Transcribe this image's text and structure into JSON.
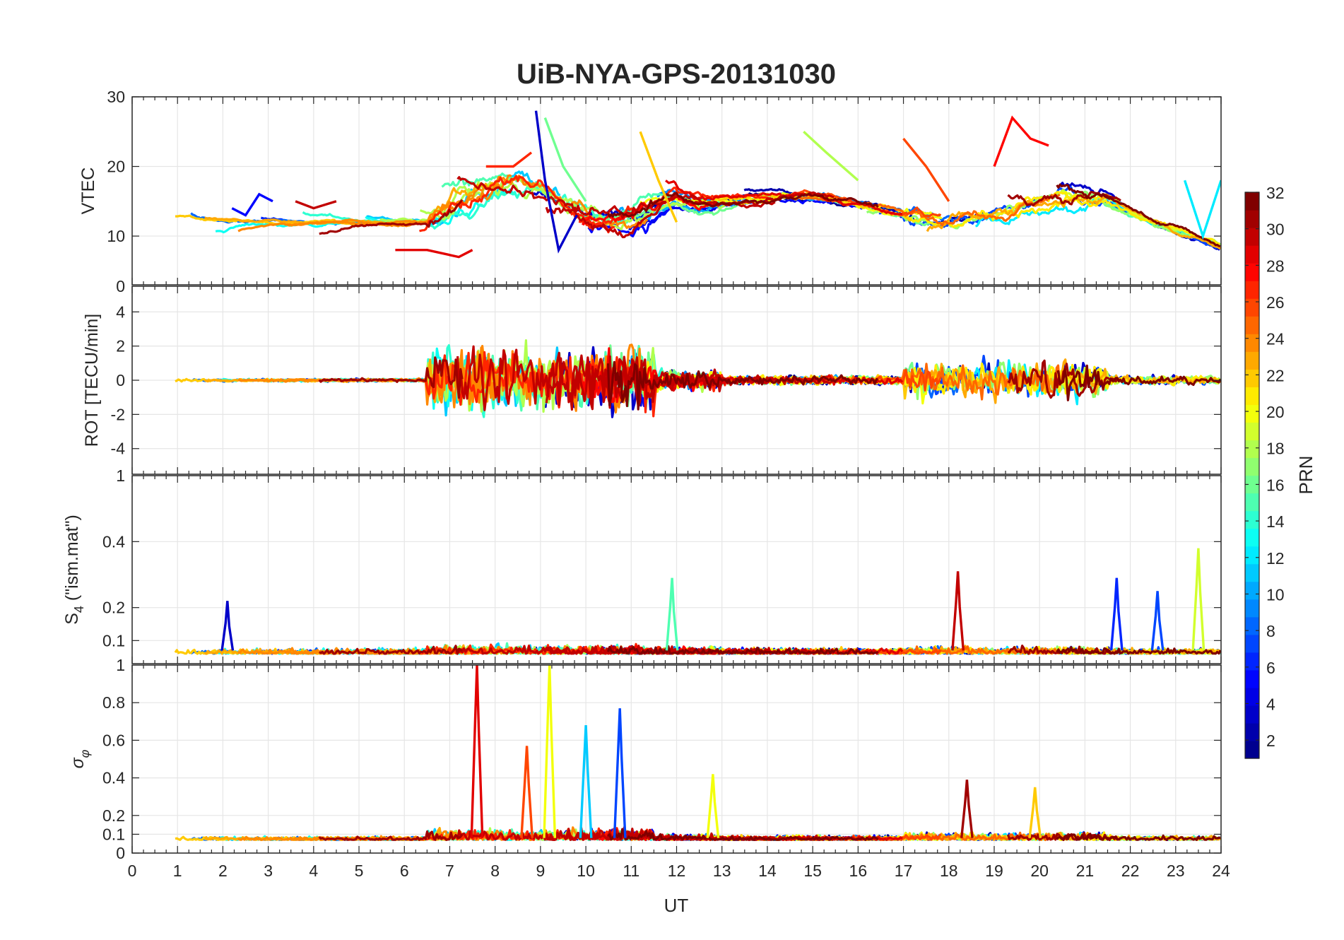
{
  "chart_data": {
    "title": "UiB-NYA-GPS-20131030",
    "type": "line",
    "x": {
      "label": "UT",
      "range": [
        0,
        24
      ],
      "ticks": [
        0,
        1,
        2,
        3,
        4,
        5,
        6,
        7,
        8,
        9,
        10,
        11,
        12,
        13,
        14,
        15,
        16,
        17,
        18,
        19,
        20,
        21,
        22,
        23,
        24
      ]
    },
    "panels": [
      {
        "id": "vtec",
        "ylabel": "VTEC",
        "ylim": [
          3,
          30
        ],
        "yticks": [
          10,
          20,
          30
        ],
        "grid": true
      },
      {
        "id": "rot",
        "ylabel": "ROT [TECU/min]",
        "ylim": [
          -5.5,
          5.5
        ],
        "yticks": [
          -4,
          -2,
          0,
          2,
          4
        ],
        "top_tick_label": "0",
        "grid": true
      },
      {
        "id": "s4",
        "ylabel": "S",
        "ylabel_sub": "4",
        "ylabel_suffix": " (\"ism.mat\")",
        "ylim": [
          0.03,
          0.6
        ],
        "yticks": [
          0.1,
          0.2,
          0.4
        ],
        "top_tick_label": "1",
        "grid": true
      },
      {
        "id": "sigma",
        "ylabel": "σ",
        "ylabel_sub": "φ",
        "ylim": [
          0,
          1
        ],
        "yticks": [
          0,
          0.1,
          0.2,
          0.4,
          0.6,
          0.8
        ],
        "top_tick_label": "1",
        "grid": true
      }
    ],
    "colorbar": {
      "label": "PRN",
      "range": [
        1,
        32
      ],
      "ticks": [
        2,
        4,
        6,
        8,
        10,
        12,
        14,
        16,
        18,
        20,
        22,
        24,
        26,
        28,
        30,
        32
      ],
      "colormap": "jet",
      "colors": [
        "#00008f",
        "#0000ff",
        "#0080ff",
        "#00ffff",
        "#80ff80",
        "#ffff00",
        "#ff8000",
        "#ff0000",
        "#800000"
      ]
    },
    "series_segments": [
      {
        "prn": 5,
        "vtec": [
          [
            2.2,
            14
          ],
          [
            2.5,
            13
          ],
          [
            2.8,
            16
          ],
          [
            3.1,
            15
          ]
        ]
      },
      {
        "prn": 30,
        "vtec": [
          [
            3.6,
            15
          ],
          [
            4.0,
            14
          ],
          [
            4.5,
            15
          ]
        ]
      },
      {
        "prn": 29,
        "vtec": [
          [
            5.8,
            8
          ],
          [
            6.5,
            8
          ],
          [
            7.2,
            7
          ],
          [
            7.5,
            8
          ]
        ]
      },
      {
        "prn": 27,
        "vtec": [
          [
            7.8,
            20
          ],
          [
            8.4,
            20
          ],
          [
            8.8,
            22
          ]
        ]
      },
      {
        "prn": 3,
        "vtec": [
          [
            8.9,
            28
          ],
          [
            9.1,
            18
          ],
          [
            9.4,
            8
          ],
          [
            9.8,
            13
          ]
        ]
      },
      {
        "prn": 16,
        "vtec": [
          [
            9.1,
            27
          ],
          [
            9.5,
            20
          ],
          [
            10.0,
            15
          ]
        ]
      },
      {
        "prn": 22,
        "vtec": [
          [
            11.2,
            25
          ],
          [
            11.6,
            18
          ],
          [
            12.0,
            12
          ]
        ]
      },
      {
        "prn": 18,
        "vtec": [
          [
            14.8,
            25
          ],
          [
            15.3,
            22
          ],
          [
            16.0,
            18
          ]
        ]
      },
      {
        "prn": 26,
        "vtec": [
          [
            17.0,
            24
          ],
          [
            17.5,
            20
          ],
          [
            18.0,
            15
          ]
        ]
      },
      {
        "prn": 28,
        "vtec": [
          [
            19.0,
            20
          ],
          [
            19.4,
            27
          ],
          [
            19.8,
            24
          ],
          [
            20.2,
            23
          ]
        ]
      },
      {
        "prn": 12,
        "vtec": [
          [
            23.2,
            18
          ],
          [
            23.6,
            10
          ],
          [
            24.0,
            18
          ]
        ]
      }
    ],
    "s4_peaks": [
      {
        "prn": 3,
        "ut": 2.1,
        "value": 0.22
      },
      {
        "prn": 15,
        "ut": 11.9,
        "value": 0.29
      },
      {
        "prn": 30,
        "ut": 18.2,
        "value": 0.31
      },
      {
        "prn": 6,
        "ut": 21.7,
        "value": 0.29
      },
      {
        "prn": 7,
        "ut": 22.6,
        "value": 0.25
      },
      {
        "prn": 19,
        "ut": 23.5,
        "value": 0.38
      }
    ],
    "sigma_peaks": [
      {
        "prn": 29,
        "ut": 7.6,
        "value": 1.0
      },
      {
        "prn": 20,
        "ut": 9.2,
        "value": 1.0
      },
      {
        "prn": 26,
        "ut": 8.7,
        "value": 0.57
      },
      {
        "prn": 7,
        "ut": 10.75,
        "value": 0.77
      },
      {
        "prn": 11,
        "ut": 10.0,
        "value": 0.68
      },
      {
        "prn": 20,
        "ut": 12.8,
        "value": 0.42
      },
      {
        "prn": 31,
        "ut": 18.4,
        "value": 0.39
      },
      {
        "prn": 22,
        "ut": 19.9,
        "value": 0.35
      }
    ]
  }
}
